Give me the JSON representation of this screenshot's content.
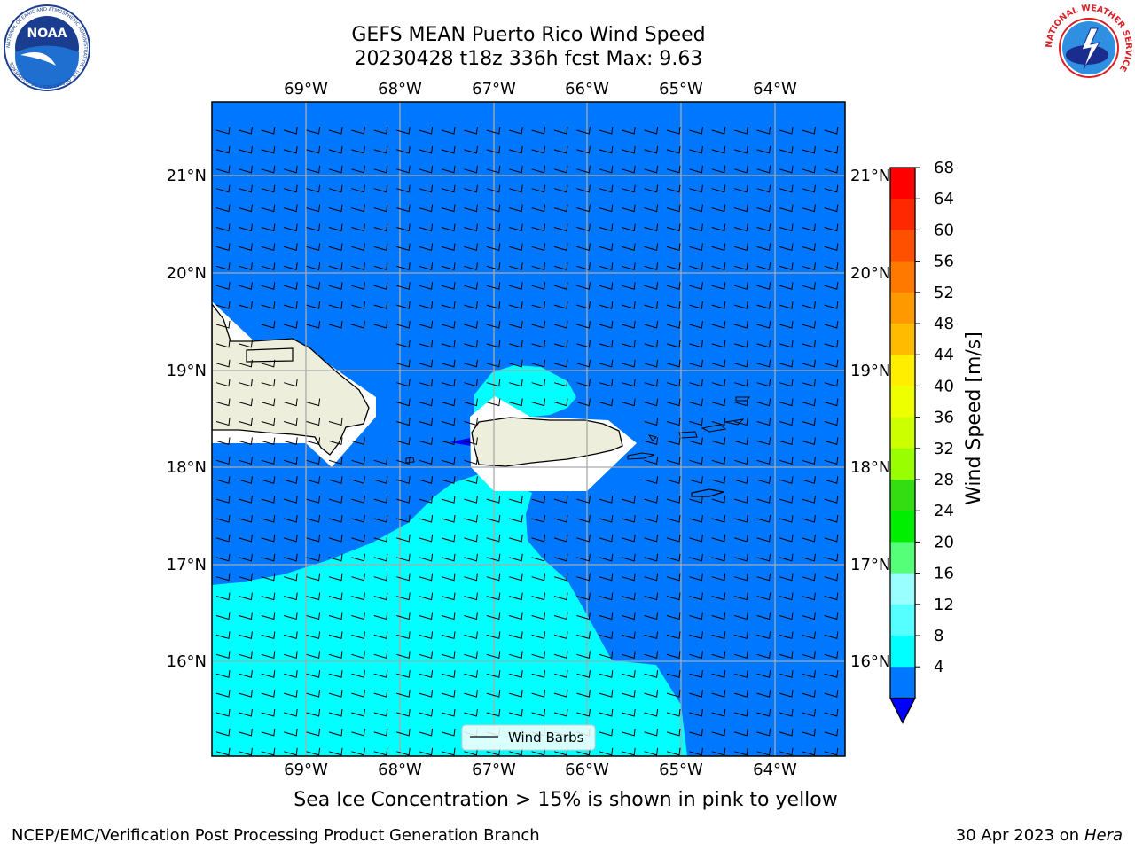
{
  "title": {
    "line1": "GEFS MEAN Puerto Rico Wind Speed",
    "line2": "20230428 t18z 336h fcst   Max: 9.63"
  },
  "subtitle": "Sea Ice Concentration > 15% is shown in pink to yellow",
  "footer": {
    "left": "NCEP/EMC/Verification Post Processing Product Generation Branch",
    "right_prefix": "30 Apr 2023 on ",
    "right_machine": "Hera"
  },
  "map": {
    "lon_labels": [
      "69°W",
      "68°W",
      "67°W",
      "66°W",
      "65°W",
      "64°W"
    ],
    "lat_labels": [
      "21°N",
      "20°N",
      "19°N",
      "18°N",
      "17°N",
      "16°N"
    ],
    "legend_label": "Wind Barbs",
    "ocean_color": "#0077ff",
    "cyan_color": "#00ffff",
    "land_color": "#eeeedd"
  },
  "colorbar": {
    "label": "Wind Speed [m/s]",
    "ticks": [
      "68",
      "64",
      "60",
      "56",
      "52",
      "48",
      "44",
      "40",
      "36",
      "32",
      "28",
      "24",
      "20",
      "16",
      "12",
      "8",
      "4"
    ],
    "colors": [
      "#ff0000",
      "#ff2800",
      "#ff5000",
      "#ff7800",
      "#ff9900",
      "#ffbb00",
      "#ffee00",
      "#eeff00",
      "#ccff00",
      "#99ff00",
      "#33dd11",
      "#00ee00",
      "#55ff77",
      "#99ffff",
      "#55ffff",
      "#00ffff",
      "#0077ff"
    ],
    "under_color": "#0000ff"
  },
  "logos": {
    "noaa_text": "NOAA",
    "noaa_ring": "NATIONAL OCEANIC AND ATMOSPHERIC ADMINISTRATION · U.S. DEPARTMENT OF COMMERCE",
    "nws_ring": "NATIONAL WEATHER SERVICE"
  }
}
